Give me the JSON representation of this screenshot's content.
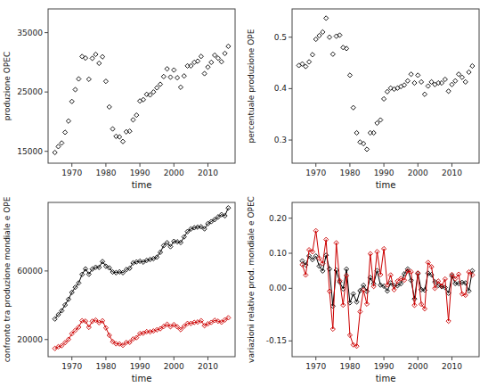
{
  "chart_data": [
    {
      "type": "scatter",
      "x_label": "time",
      "y_label": "produzione OPEC",
      "color": "#000000",
      "marker": "diamond",
      "x": [
        1965,
        1966,
        1967,
        1968,
        1969,
        1970,
        1971,
        1972,
        1973,
        1974,
        1975,
        1976,
        1977,
        1978,
        1979,
        1980,
        1981,
        1982,
        1983,
        1984,
        1985,
        1986,
        1987,
        1988,
        1989,
        1990,
        1991,
        1992,
        1993,
        1994,
        1995,
        1996,
        1997,
        1998,
        1999,
        2000,
        2001,
        2002,
        2003,
        2004,
        2005,
        2006,
        2007,
        2008,
        2009,
        2010,
        2011,
        2012,
        2013,
        2014,
        2015,
        2016
      ],
      "values": [
        14800,
        15800,
        16400,
        18200,
        20100,
        23400,
        25400,
        27200,
        30980,
        30720,
        27150,
        30670,
        31340,
        29840,
        30930,
        26800,
        22480,
        18770,
        17520,
        17430,
        16650,
        18290,
        18390,
        20310,
        21100,
        23480,
        23700,
        24600,
        24500,
        25000,
        25700,
        26300,
        27600,
        28900,
        27500,
        28700,
        27400,
        25800,
        27700,
        29400,
        29400,
        30000,
        30200,
        31000,
        28100,
        29200,
        30000,
        31200,
        30700,
        30100,
        31500,
        32700
      ],
      "xlim": [
        1963,
        2018
      ],
      "xticks": [
        1970,
        1980,
        1990,
        2000,
        2010
      ],
      "ylim": [
        13000,
        39000
      ],
      "yticks": [
        15000,
        25000,
        35000
      ]
    },
    {
      "type": "scatter",
      "x_label": "time",
      "y_label": "percentuale produzione OPE",
      "color": "#000000",
      "marker": "diamond",
      "x": [
        1965,
        1966,
        1967,
        1968,
        1969,
        1970,
        1971,
        1972,
        1973,
        1974,
        1975,
        1976,
        1977,
        1978,
        1979,
        1980,
        1981,
        1982,
        1983,
        1984,
        1985,
        1986,
        1987,
        1988,
        1989,
        1990,
        1991,
        1992,
        1993,
        1994,
        1995,
        1996,
        1997,
        1998,
        1999,
        2000,
        2001,
        2002,
        2003,
        2004,
        2005,
        2006,
        2007,
        2008,
        2009,
        2010,
        2011,
        2012,
        2013,
        2014,
        2015,
        2016
      ],
      "values": [
        0.445,
        0.448,
        0.443,
        0.452,
        0.466,
        0.496,
        0.503,
        0.51,
        0.537,
        0.5,
        0.467,
        0.502,
        0.504,
        0.48,
        0.478,
        0.426,
        0.363,
        0.314,
        0.296,
        0.293,
        0.282,
        0.314,
        0.314,
        0.333,
        0.339,
        0.38,
        0.394,
        0.401,
        0.399,
        0.401,
        0.404,
        0.407,
        0.415,
        0.428,
        0.411,
        0.426,
        0.413,
        0.389,
        0.405,
        0.413,
        0.408,
        0.411,
        0.411,
        0.418,
        0.395,
        0.408,
        0.415,
        0.428,
        0.422,
        0.413,
        0.432,
        0.444
      ],
      "xlim": [
        1963,
        2018
      ],
      "xticks": [
        1970,
        1980,
        1990,
        2000,
        2010
      ],
      "ylim": [
        0.255,
        0.555
      ],
      "yticks": [
        0.3,
        0.4,
        0.5
      ]
    },
    {
      "type": "line",
      "x_label": "time",
      "y_label": "confronto tra produzione mondiale e OPE",
      "marker": "diamond",
      "x": [
        1965,
        1966,
        1967,
        1968,
        1969,
        1970,
        1971,
        1972,
        1973,
        1974,
        1975,
        1976,
        1977,
        1978,
        1979,
        1980,
        1981,
        1982,
        1983,
        1984,
        1985,
        1986,
        1987,
        1988,
        1989,
        1990,
        1991,
        1992,
        1993,
        1994,
        1995,
        1996,
        1997,
        1998,
        1999,
        2000,
        2001,
        2002,
        2003,
        2004,
        2005,
        2006,
        2007,
        2008,
        2009,
        2010,
        2011,
        2012,
        2013,
        2014,
        2015,
        2016
      ],
      "series": [
        {
          "color": "#000000",
          "values": [
            32000,
            34500,
            36800,
            40200,
            43500,
            47500,
            50500,
            53000,
            58000,
            61200,
            58100,
            61100,
            62200,
            62100,
            65500,
            62800,
            61800,
            59400,
            59000,
            59500,
            59000,
            60800,
            61600,
            64700,
            65300,
            65700,
            65200,
            66200,
            66700,
            67200,
            68100,
            70900,
            74800,
            76500,
            74200,
            77300,
            77000,
            76600,
            79900,
            83000,
            84500,
            85200,
            85600,
            85800,
            84600,
            87600,
            88800,
            90000,
            91500,
            92900,
            92200,
            96800
          ]
        },
        {
          "color": "#cc0000",
          "values": [
            14800,
            15800,
            16400,
            18200,
            20100,
            23400,
            25400,
            27200,
            30980,
            30720,
            27150,
            30670,
            31340,
            29840,
            30930,
            26800,
            22480,
            18770,
            17520,
            17430,
            16650,
            18290,
            18390,
            20310,
            21100,
            23480,
            23700,
            24600,
            24500,
            25000,
            25700,
            26300,
            27600,
            28900,
            27500,
            28700,
            27400,
            25800,
            27700,
            29400,
            29400,
            30000,
            30200,
            31000,
            28100,
            29200,
            30000,
            31200,
            30700,
            30100,
            31500,
            32700
          ]
        }
      ],
      "xlim": [
        1963,
        2018
      ],
      "xticks": [
        1970,
        1980,
        1990,
        2000,
        2010
      ],
      "ylim": [
        10000,
        100000
      ],
      "yticks": [
        20000,
        60000
      ]
    },
    {
      "type": "line",
      "x_label": "time",
      "y_label": "variazioni relative prod. mondiale e OPEC",
      "marker": "diamond",
      "x": [
        1966,
        1967,
        1968,
        1969,
        1970,
        1971,
        1972,
        1973,
        1974,
        1975,
        1976,
        1977,
        1978,
        1979,
        1980,
        1981,
        1982,
        1983,
        1984,
        1985,
        1986,
        1987,
        1988,
        1989,
        1990,
        1991,
        1992,
        1993,
        1994,
        1995,
        1996,
        1997,
        1998,
        1999,
        2000,
        2001,
        2002,
        2003,
        2004,
        2005,
        2006,
        2007,
        2008,
        2009,
        2010,
        2011,
        2012,
        2013,
        2014,
        2015,
        2016
      ],
      "series": [
        {
          "color": "#000000",
          "values": [
            0.078125,
            0.066667,
            0.092391,
            0.08209,
            0.091954,
            0.063158,
            0.049505,
            0.09434,
            0.055172,
            -0.050654,
            0.051635,
            0.018003,
            -0.001608,
            0.05475,
            -0.041221,
            -0.015924,
            -0.038835,
            -0.006734,
            0.008475,
            -0.008403,
            0.030508,
            0.013158,
            0.050325,
            0.009274,
            0.006126,
            -0.00761,
            0.015337,
            0.007553,
            0.007496,
            0.013393,
            0.041116,
            0.055007,
            0.022727,
            -0.030065,
            0.041779,
            -0.003881,
            -0.005195,
            0.043081,
            0.038798,
            0.018072,
            0.008284,
            0.004695,
            0.002336,
            -0.013986,
            0.035461,
            0.013699,
            0.013514,
            0.016667,
            0.015301,
            -0.007535,
            0.049892
          ]
        },
        {
          "color": "#cc0000",
          "values": [
            0.067568,
            0.037975,
            0.109756,
            0.104396,
            0.164179,
            0.08547,
            0.070866,
            0.138971,
            -0.008393,
            -0.116211,
            0.12965,
            0.021846,
            -0.047862,
            0.036528,
            -0.133527,
            -0.161194,
            -0.165036,
            -0.066596,
            -0.005137,
            -0.04475,
            0.098498,
            0.005467,
            0.104405,
            0.038897,
            0.112796,
            0.00937,
            0.037975,
            -0.004065,
            0.020408,
            0.028,
            0.023346,
            0.04943,
            0.047101,
            -0.048443,
            0.043636,
            -0.045296,
            -0.058394,
            0.073643,
            0.061372,
            0,
            0.020408,
            0.006667,
            0.02649,
            -0.093548,
            0.039146,
            0.027397,
            0.04,
            -0.016026,
            -0.019544,
            0.046512,
            0.038095
          ]
        }
      ],
      "xlim": [
        1963,
        2018
      ],
      "xticks": [
        1970,
        1980,
        1990,
        2000,
        2010
      ],
      "ylim": [
        -0.195,
        0.245
      ],
      "yticks": [
        -0.15,
        {
          "value": 0,
          "label": "0.00"
        },
        {
          "value": 0.1,
          "label": "0.10"
        },
        {
          "value": 0.2,
          "label": "0.20"
        }
      ]
    }
  ]
}
